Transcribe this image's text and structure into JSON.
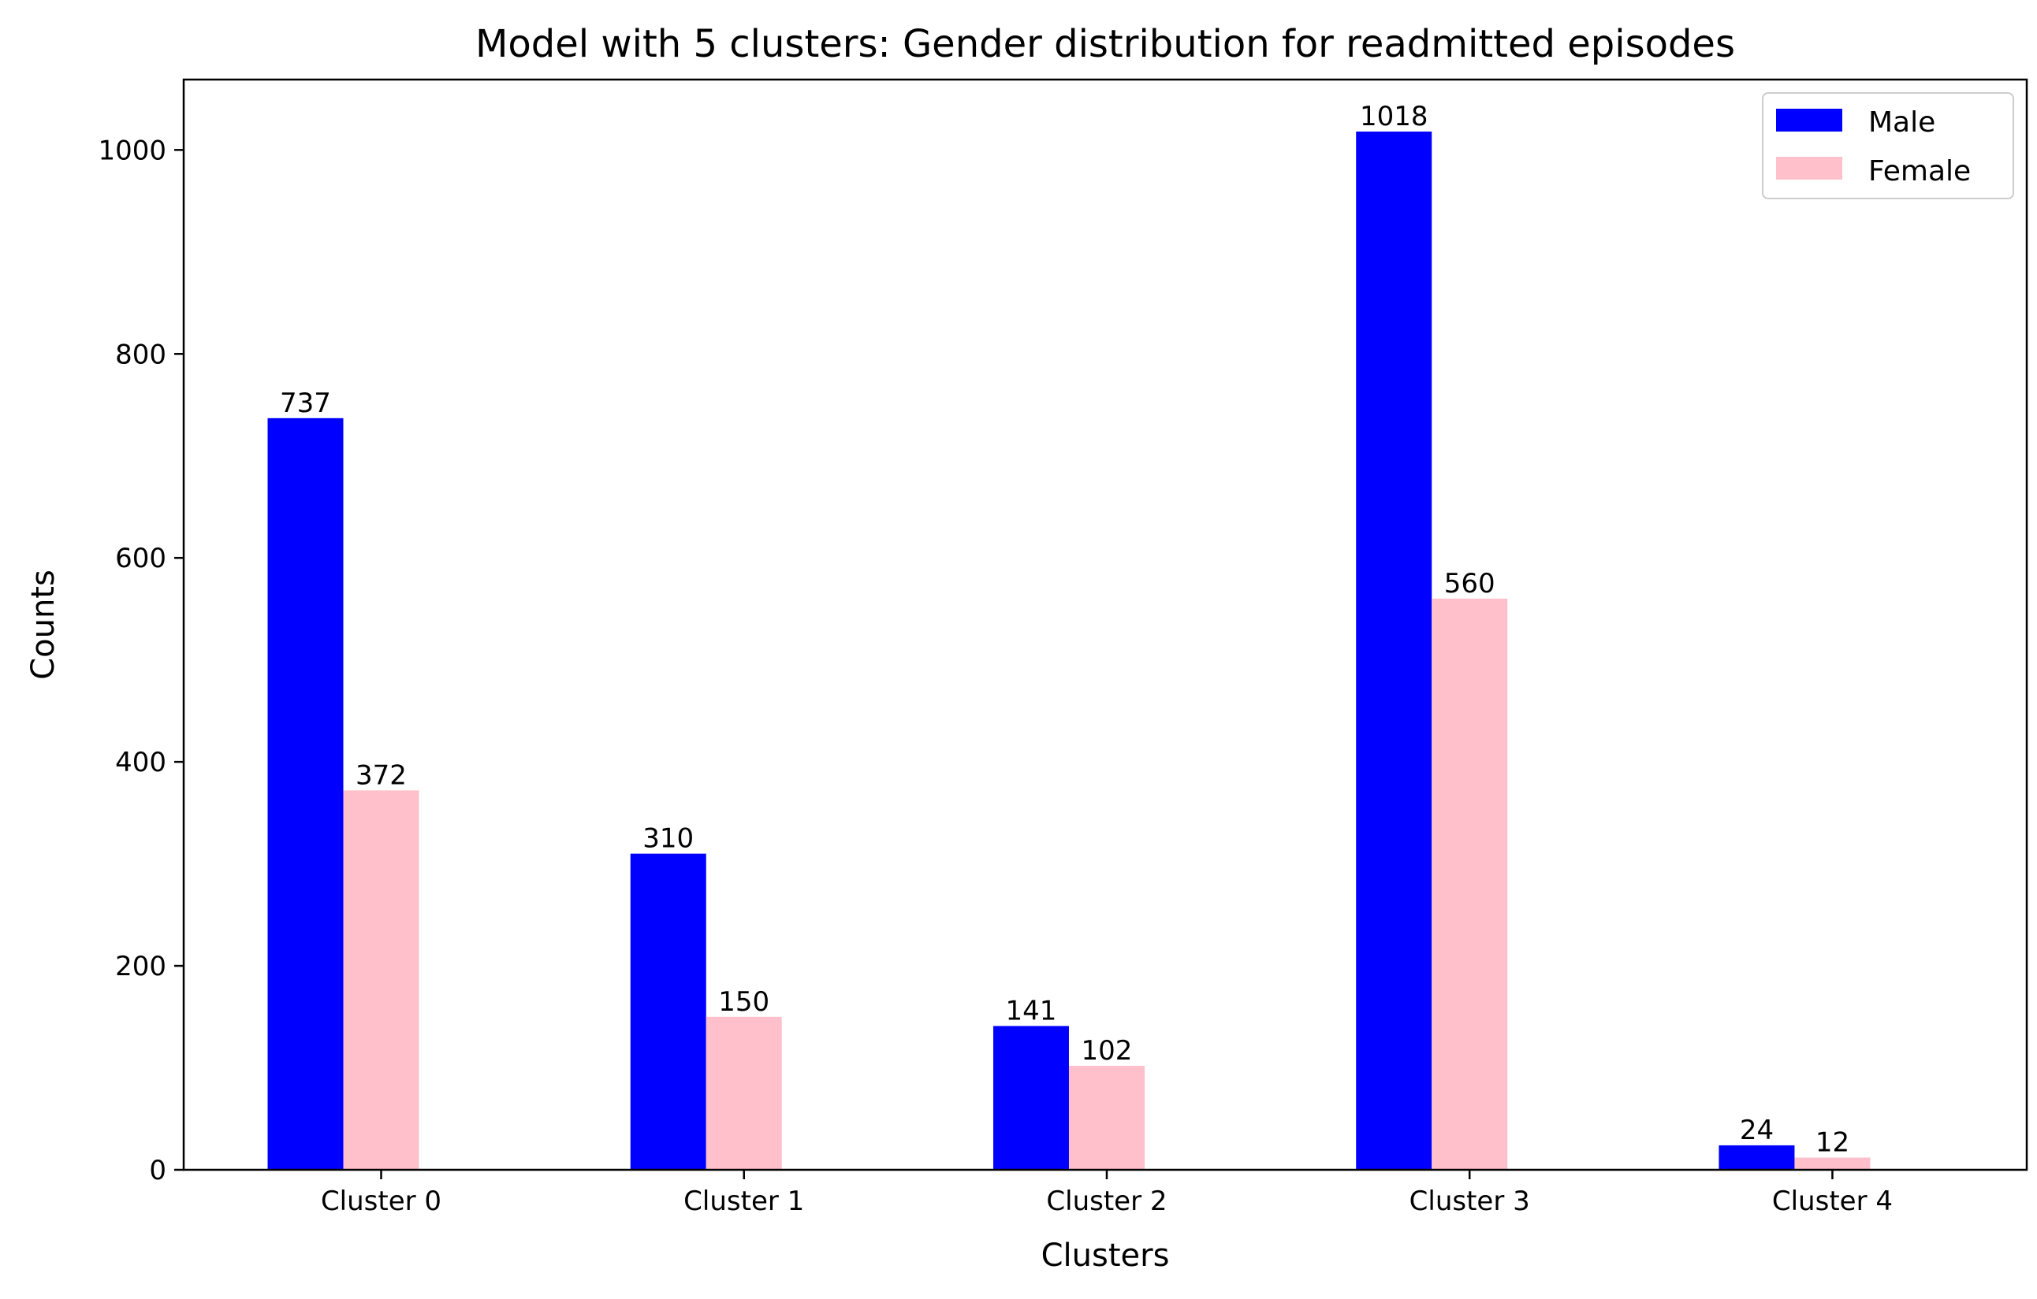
{
  "chart_data": {
    "type": "bar",
    "title": "Model with 5 clusters: Gender distribution for readmitted episodes",
    "xlabel": "Clusters",
    "ylabel": "Counts",
    "categories": [
      "Cluster 0",
      "Cluster 1",
      "Cluster 2",
      "Cluster 3",
      "Cluster 4"
    ],
    "series": [
      {
        "name": "Male",
        "color": "#0000ff",
        "values": [
          737,
          310,
          141,
          1018,
          24
        ]
      },
      {
        "name": "Female",
        "color": "#ffc0cb",
        "values": [
          372,
          150,
          102,
          560,
          12
        ]
      }
    ],
    "ylim": [
      0,
      1069
    ],
    "yticks": [
      0,
      200,
      400,
      600,
      800,
      1000
    ],
    "grid": false,
    "legend_position": "top-right"
  }
}
